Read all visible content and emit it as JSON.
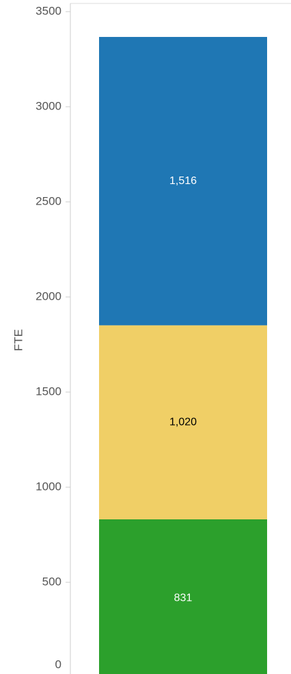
{
  "chart_data": {
    "type": "stacked_bar",
    "ylabel": "FTE",
    "categories": [
      null
    ],
    "series": [
      {
        "color": "#2ca02c",
        "values": [
          831
        ],
        "value_labels": [
          "831"
        ]
      },
      {
        "color": "#f0cf66",
        "values": [
          1020
        ],
        "value_labels": [
          "1,020"
        ]
      },
      {
        "color": "#1f77b4",
        "values": [
          1516
        ],
        "value_labels": [
          "1,516"
        ]
      }
    ],
    "ylim": [
      0,
      3500
    ],
    "yticks": [
      0,
      500,
      1000,
      1500,
      2000,
      2500,
      3000,
      3500
    ],
    "grid": false
  }
}
